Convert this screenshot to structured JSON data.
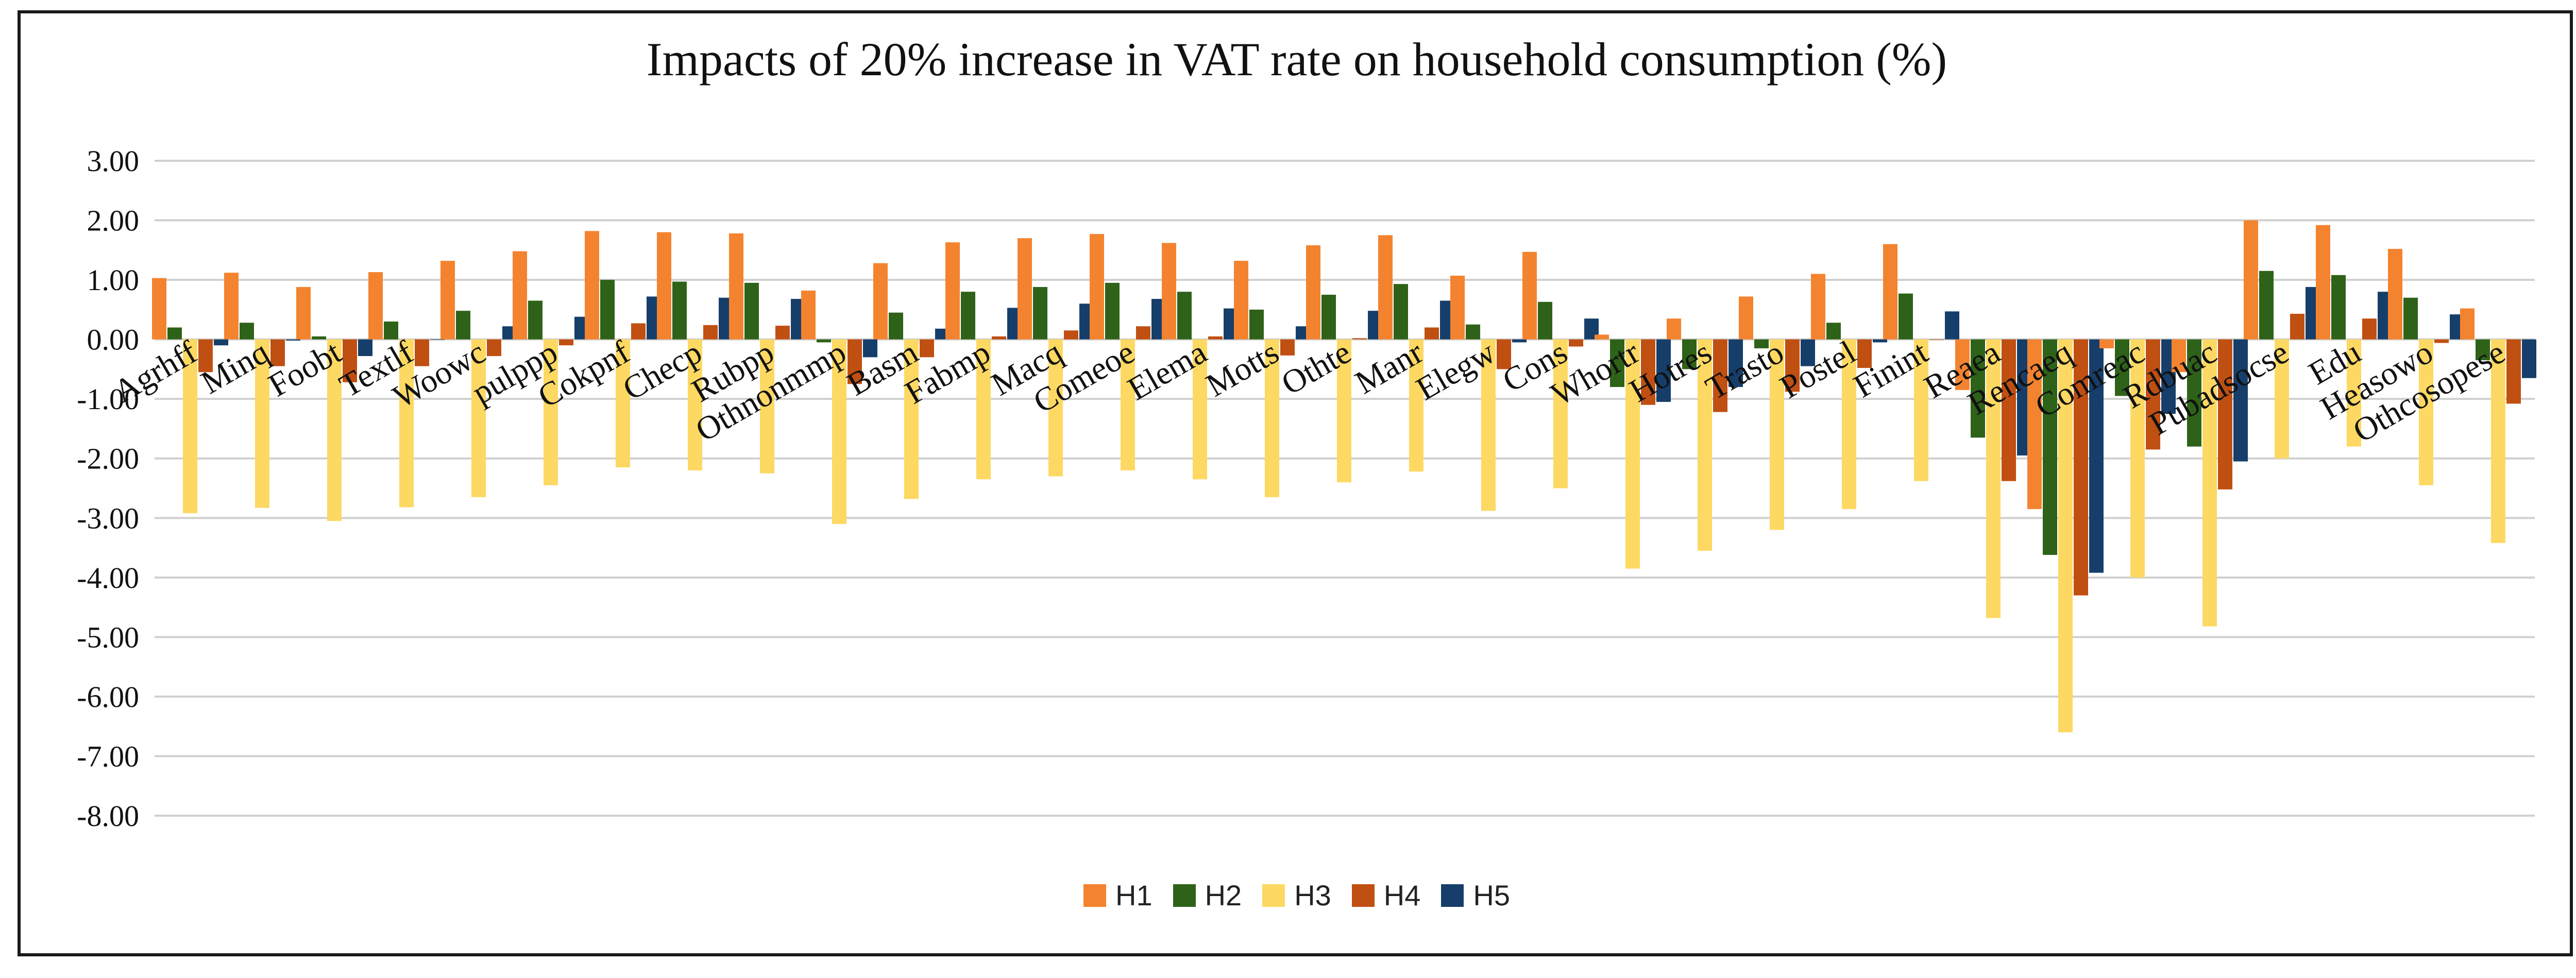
{
  "chart_data": {
    "type": "bar",
    "title": "Impacts of 20% increase in VAT rate on household consumption (%)",
    "xlabel": "",
    "ylabel": "",
    "ylim": [
      -8,
      3
    ],
    "yticks": [
      "3.00",
      "2.00",
      "1.00",
      "0.00",
      "-1.00",
      "-2.00",
      "-3.00",
      "-4.00",
      "-5.00",
      "-6.00",
      "-7.00",
      "-8.00"
    ],
    "categories": [
      "Agrhff",
      "Minq",
      "Foobt",
      "Textlf",
      "Woowc",
      "pulppp",
      "Cokpnf",
      "Checp",
      "Rubpp",
      "Othnonmmp",
      "Basm",
      "Fabmp",
      "Macq",
      "Comeoe",
      "Elema",
      "Motts",
      "Othte",
      "Manr",
      "Elegw",
      "Cons",
      "Whortr",
      "Hotres",
      "Trasto",
      "Postel",
      "Finint",
      "Reaea",
      "Rencaeq",
      "Comreac",
      "Rdbuac",
      "Pubadsocse",
      "Edu",
      "Heasowo",
      "Othcosopese"
    ],
    "series": [
      {
        "name": "H1",
        "color": "#F4832F",
        "values": [
          1.03,
          1.12,
          0.88,
          1.13,
          1.32,
          1.48,
          1.82,
          1.8,
          1.78,
          0.82,
          1.28,
          1.63,
          1.7,
          1.77,
          1.62,
          1.32,
          1.58,
          1.75,
          1.07,
          1.47,
          0.08,
          0.35,
          0.72,
          1.1,
          1.6,
          -0.85,
          -2.85,
          -0.15,
          -0.55,
          2.0,
          1.92,
          1.52,
          0.52
        ]
      },
      {
        "name": "H2",
        "color": "#2E6218",
        "values": [
          0.2,
          0.28,
          0.05,
          0.3,
          0.48,
          0.65,
          1.0,
          0.97,
          0.95,
          -0.05,
          0.45,
          0.8,
          0.88,
          0.95,
          0.8,
          0.5,
          0.75,
          0.93,
          0.25,
          0.63,
          -0.8,
          -0.5,
          -0.15,
          0.28,
          0.77,
          -1.65,
          -3.62,
          -0.95,
          -1.8,
          1.15,
          1.08,
          0.7,
          -0.35
        ]
      },
      {
        "name": "H3",
        "color": "#FDD862",
        "values": [
          -2.92,
          -2.83,
          -3.05,
          -2.82,
          -2.65,
          -2.45,
          -2.15,
          -2.2,
          -2.25,
          -3.1,
          -2.68,
          -2.35,
          -2.3,
          -2.2,
          -2.35,
          -2.65,
          -2.4,
          -2.22,
          -2.88,
          -2.5,
          -3.85,
          -3.55,
          -3.2,
          -2.85,
          -2.38,
          -4.68,
          -6.6,
          -4.0,
          -4.82,
          -2.0,
          -1.8,
          -2.45,
          -3.42
        ]
      },
      {
        "name": "H4",
        "color": "#C04F12",
        "values": [
          -0.55,
          -0.45,
          -0.72,
          -0.45,
          -0.28,
          -0.1,
          0.27,
          0.24,
          0.23,
          -0.75,
          -0.3,
          0.05,
          0.15,
          0.22,
          0.05,
          -0.27,
          0.02,
          0.2,
          -0.5,
          -0.12,
          -1.1,
          -1.22,
          -0.88,
          -0.48,
          0.0,
          -2.38,
          -4.3,
          -1.85,
          -2.52,
          0.43,
          0.35,
          -0.06,
          -1.08
        ]
      },
      {
        "name": "H5",
        "color": "#163E6A",
        "values": [
          -0.1,
          -0.02,
          -0.28,
          0.0,
          0.22,
          0.38,
          0.72,
          0.7,
          0.68,
          -0.3,
          0.18,
          0.53,
          0.6,
          0.68,
          0.52,
          0.22,
          0.48,
          0.65,
          -0.05,
          0.35,
          -1.05,
          -0.8,
          -0.45,
          -0.05,
          0.47,
          -1.95,
          -3.92,
          -1.25,
          -2.05,
          0.88,
          0.8,
          0.42,
          -0.65
        ]
      }
    ]
  }
}
